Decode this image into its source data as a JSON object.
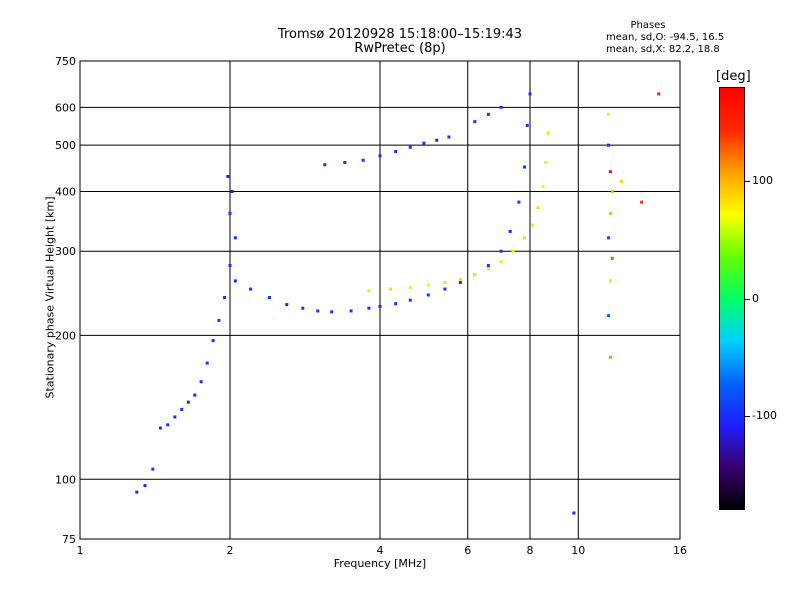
{
  "title": "Tromsø 20120928 15:18:00–15:19:43",
  "subtitle": "RwPretec (8p)",
  "stats": {
    "title": "Phases",
    "line_o": "mean, sd,O: -94.5, 16.5",
    "line_x": "mean, sd,X:  82.2, 18.8"
  },
  "colorbar": {
    "unit_label": "[deg]",
    "range": [
      -180,
      180
    ],
    "ticks": [
      {
        "value": 100,
        "label": "100"
      },
      {
        "value": 0,
        "label": "0"
      },
      {
        "value": -100,
        "label": "-100"
      }
    ],
    "colors": [
      "#000000",
      "#3a0070",
      "#1e1eff",
      "#0064ff",
      "#00d2ff",
      "#00ff64",
      "#64ff00",
      "#ffff00",
      "#ffa000",
      "#ff2800",
      "#ff0000"
    ]
  },
  "chart_data": {
    "type": "scatter",
    "title": "Tromsø 20120928 15:18:00–15:19:43",
    "subtitle": "RwPretec (8p)",
    "xlabel": "Frequency [MHz]",
    "ylabel": "Stationary phase Virtual Height [km]",
    "xscale": "log",
    "yscale": "log",
    "xlim": [
      1,
      16
    ],
    "ylim": [
      75,
      750
    ],
    "xticks": [
      1,
      2,
      4,
      6,
      8,
      10,
      16
    ],
    "xtick_labels": [
      "1",
      "2",
      "4",
      "6",
      "8",
      "10",
      "16"
    ],
    "yticks": [
      75,
      100,
      200,
      300,
      400,
      500,
      600,
      750
    ],
    "ytick_labels": [
      "75",
      "100",
      "200",
      "300",
      "400",
      "500",
      "600",
      "750"
    ],
    "grid": true,
    "color_by": "phase (deg)",
    "series": [
      {
        "x": [
          1.3,
          1.35,
          1.4,
          1.45,
          1.5,
          1.55,
          1.6,
          1.65,
          1.7,
          1.75,
          1.8,
          1.85,
          1.9,
          1.95,
          2.0,
          2.05,
          2.0,
          2.02,
          1.98,
          2.05
        ],
        "y": [
          94,
          97,
          105,
          128,
          130,
          135,
          140,
          145,
          150,
          160,
          175,
          195,
          215,
          240,
          280,
          320,
          360,
          400,
          430,
          260
        ],
        "phase": [
          -100,
          -105,
          -95,
          -100,
          -98,
          -102,
          -96,
          -100,
          -104,
          -99,
          -97,
          -101,
          -100,
          -103,
          -98,
          -100,
          -96,
          -102,
          -99,
          -100
        ]
      },
      {
        "x": [
          2.2,
          2.4,
          2.6,
          2.8,
          3.0,
          3.2,
          3.5,
          3.8,
          4.0,
          4.3,
          4.6,
          5.0,
          5.4,
          5.8,
          6.2,
          6.6,
          7.0,
          7.3,
          7.6,
          7.8,
          7.9,
          8.0
        ],
        "y": [
          250,
          240,
          232,
          228,
          225,
          224,
          225,
          228,
          230,
          233,
          237,
          243,
          250,
          258,
          268,
          280,
          300,
          330,
          380,
          450,
          550,
          640
        ],
        "phase": [
          -95,
          -98,
          -100,
          -102,
          -99,
          -101,
          -97,
          -100,
          -103,
          -98,
          -100,
          -96,
          -100,
          -102,
          -99,
          -100,
          -97,
          -101,
          -99,
          -100,
          -98,
          -102
        ]
      },
      {
        "x": [
          3.8,
          4.2,
          4.6,
          5.0,
          5.4,
          5.8,
          6.2,
          6.6,
          7.0,
          7.4,
          7.8,
          8.1,
          8.3,
          8.5,
          8.6,
          8.7
        ],
        "y": [
          248,
          250,
          252,
          255,
          258,
          262,
          268,
          276,
          285,
          300,
          320,
          340,
          370,
          410,
          460,
          530
        ],
        "phase": [
          80,
          85,
          82,
          78,
          84,
          86,
          80,
          83,
          81,
          79,
          85,
          82,
          84,
          80,
          83,
          82
        ]
      },
      {
        "x": [
          3.1,
          3.4,
          3.7,
          4.0,
          4.3,
          4.6,
          4.9,
          5.2,
          5.5,
          6.2,
          6.6,
          7.0
        ],
        "y": [
          455,
          460,
          465,
          475,
          485,
          495,
          505,
          512,
          520,
          560,
          580,
          600
        ],
        "phase": [
          -100,
          -98,
          -102,
          -99,
          -101,
          -97,
          -100,
          -103,
          -98,
          -100,
          -96,
          -99
        ]
      },
      {
        "x": [
          11.5,
          11.5,
          11.6,
          11.7,
          11.6,
          11.5,
          11.7,
          11.6,
          11.5,
          11.6,
          12.2,
          13.4,
          14.5,
          9.8
        ],
        "y": [
          580,
          500,
          440,
          400,
          360,
          320,
          290,
          260,
          220,
          180,
          420,
          380,
          640,
          85
        ],
        "phase": [
          80,
          -100,
          170,
          100,
          40,
          -90,
          130,
          60,
          -70,
          110,
          90,
          140,
          150,
          -100
        ]
      }
    ]
  }
}
